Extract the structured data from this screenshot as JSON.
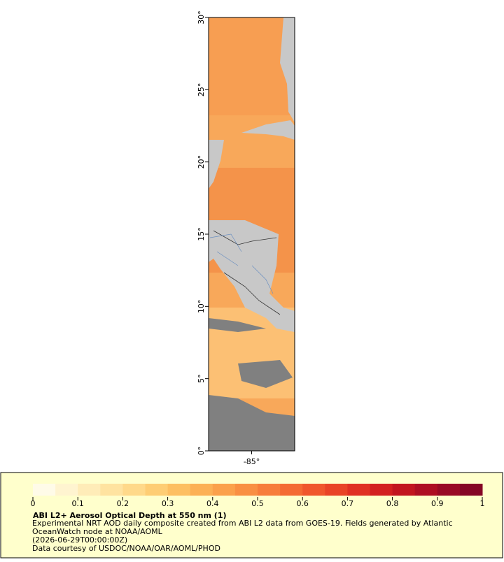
{
  "map": {
    "lat_range": [
      0,
      30
    ],
    "lon_range": [
      -88,
      -82
    ],
    "lat_ticks": [
      {
        "value": 0,
        "label": "0°"
      },
      {
        "value": 5,
        "label": "5°"
      },
      {
        "value": 10,
        "label": "10°"
      },
      {
        "value": 15,
        "label": "15°"
      },
      {
        "value": 20,
        "label": "20°"
      },
      {
        "value": 25,
        "label": "25°"
      },
      {
        "value": 30,
        "label": "30°"
      }
    ],
    "lon_ticks": [
      {
        "value": -85,
        "label": "-85°"
      }
    ]
  },
  "legend": {
    "title": "ABI L2+ Aerosol Optical Depth at 550 nm (1)",
    "description": "Experimental NRT AOD daily composite created from ABI L2 data from GOES-19. Fields generated by Atlantic OceanWatch node at NOAA/AOML",
    "date": "(2026-06-29T00:00:00Z)",
    "credit": "Data courtesy of USDOC/NOAA/OAR/AOML/PHOD",
    "colorbar": {
      "range": [
        0,
        1
      ],
      "ticks": [
        0,
        0.1,
        0.2,
        0.3,
        0.4,
        0.5,
        0.6,
        0.7,
        0.8,
        0.9,
        1
      ],
      "colors": [
        "#fffbe8",
        "#fff4d0",
        "#ffecb8",
        "#ffe3a0",
        "#ffd98a",
        "#fecd74",
        "#fdbf62",
        "#fcb055",
        "#fba04b",
        "#f98f42",
        "#f77d3a",
        "#f46a33",
        "#f0562c",
        "#e94326",
        "#e03022",
        "#d32020",
        "#c2151f",
        "#ae0e22",
        "#990a24",
        "#850624"
      ]
    }
  }
}
